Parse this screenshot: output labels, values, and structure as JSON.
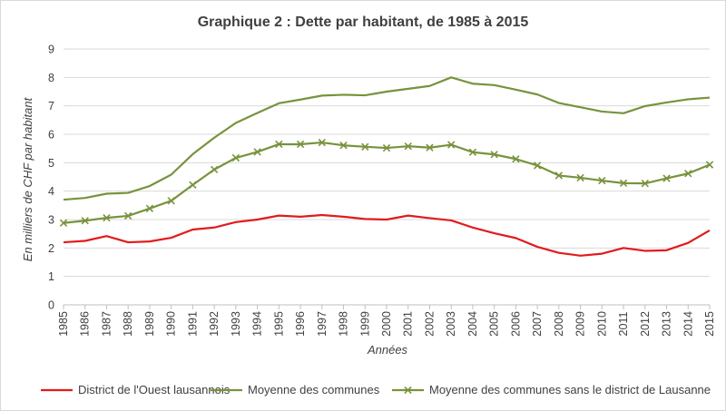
{
  "chart_data": {
    "type": "line",
    "title": "Graphique 2 : Dette par habitant, de 1985 à 2015",
    "xlabel": "Années",
    "ylabel": "En milliers de CHF par habitant",
    "ylim": [
      0,
      9
    ],
    "yticks": [
      0,
      1,
      2,
      3,
      4,
      5,
      6,
      7,
      8,
      9
    ],
    "grid": "horizontal",
    "legend_position": "bottom",
    "categories": [
      "1985",
      "1986",
      "1987",
      "1988",
      "1989",
      "1990",
      "1991",
      "1992",
      "1993",
      "1994",
      "1995",
      "1996",
      "1997",
      "1998",
      "1999",
      "2000",
      "2001",
      "2002",
      "2003",
      "2004",
      "2005",
      "2006",
      "2007",
      "2008",
      "2009",
      "2010",
      "2011",
      "2012",
      "2013",
      "2014",
      "2015"
    ],
    "series": [
      {
        "name": "District de l'Ouest lausannois",
        "color": "#e31a1c",
        "marker": "none",
        "values": [
          2.2,
          2.25,
          2.42,
          2.2,
          2.23,
          2.36,
          2.65,
          2.72,
          2.91,
          3.0,
          3.14,
          3.1,
          3.16,
          3.1,
          3.02,
          3.0,
          3.14,
          3.05,
          2.97,
          2.72,
          2.52,
          2.35,
          2.04,
          1.83,
          1.73,
          1.8,
          2.0,
          1.9,
          1.92,
          2.18,
          2.62
        ]
      },
      {
        "name": "Moyenne des communes",
        "color": "#77933c",
        "marker": "none",
        "values": [
          3.7,
          3.76,
          3.91,
          3.94,
          4.18,
          4.58,
          5.3,
          5.88,
          6.4,
          6.75,
          7.09,
          7.22,
          7.36,
          7.39,
          7.37,
          7.5,
          7.6,
          7.7,
          8.0,
          7.78,
          7.73,
          7.57,
          7.4,
          7.1,
          6.95,
          6.8,
          6.74,
          6.99,
          7.12,
          7.23,
          7.29
        ]
      },
      {
        "name": "Moyenne des communes sans le district de Lausanne",
        "color": "#77933c",
        "marker": "x",
        "values": [
          2.88,
          2.96,
          3.06,
          3.13,
          3.39,
          3.66,
          4.22,
          4.76,
          5.17,
          5.38,
          5.65,
          5.65,
          5.71,
          5.61,
          5.56,
          5.52,
          5.58,
          5.53,
          5.63,
          5.37,
          5.29,
          5.13,
          4.9,
          4.55,
          4.47,
          4.37,
          4.28,
          4.27,
          4.45,
          4.62,
          4.93
        ]
      }
    ]
  }
}
